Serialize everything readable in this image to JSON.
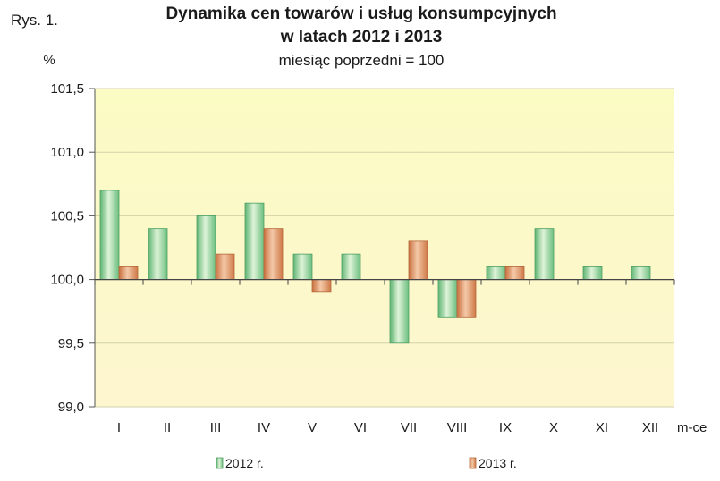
{
  "figure": {
    "label": "Rys. 1.",
    "title_line1": "Dynamika cen towarów i usług konsumpcyjnych",
    "title_line2": "w latach 2012 i 2013",
    "subtitle": "miesiąc poprzedni = 100"
  },
  "chart_data": {
    "type": "bar",
    "title": "Dynamika cen towarów i usług konsumpcyjnych w latach 2012 i 2013",
    "subtitle": "miesiąc poprzedni = 100",
    "ylabel": "%",
    "xlabel": "m-ce",
    "categories": [
      "I",
      "II",
      "III",
      "IV",
      "V",
      "VI",
      "VII",
      "VIII",
      "IX",
      "X",
      "XI",
      "XII"
    ],
    "baseline": 100.0,
    "ylim": [
      99.0,
      101.5
    ],
    "yticks": [
      "101,5",
      "101,0",
      "100,5",
      "100,0",
      "99,5",
      "99,0"
    ],
    "ytick_values": [
      101.5,
      101.0,
      100.5,
      100.0,
      99.5,
      99.0
    ],
    "grid": true,
    "legend_position": "bottom",
    "series": [
      {
        "name": "2012 r.",
        "color": "#7fc98f",
        "values": [
          100.7,
          100.4,
          100.5,
          100.6,
          100.2,
          100.2,
          99.5,
          99.7,
          100.1,
          100.4,
          100.1,
          100.1
        ]
      },
      {
        "name": "2013 r.",
        "color": "#d9885a",
        "values": [
          100.1,
          null,
          100.2,
          100.4,
          99.9,
          null,
          100.3,
          99.7,
          100.1,
          null,
          null,
          null
        ]
      }
    ]
  }
}
